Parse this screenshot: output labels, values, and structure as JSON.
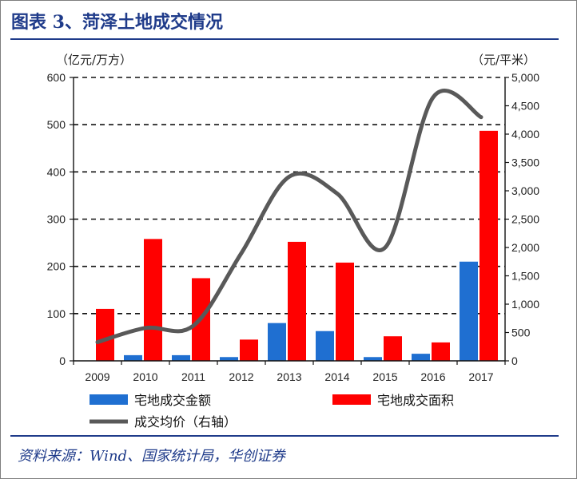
{
  "header": {
    "title": "图表 3、菏泽土地成交情况"
  },
  "footer": {
    "source": "资料来源：Wind、国家统计局，华创证券"
  },
  "chart_data": {
    "type": "bar",
    "categories": [
      "2009",
      "2010",
      "2011",
      "2012",
      "2013",
      "2014",
      "2015",
      "2016",
      "2017"
    ],
    "series": [
      {
        "name": "宅地成交金额",
        "type": "bar",
        "axis": "left",
        "color": "#1f6fd1",
        "values": [
          0,
          12,
          12,
          8,
          80,
          63,
          8,
          15,
          210
        ]
      },
      {
        "name": "宅地成交面积",
        "type": "bar",
        "axis": "left",
        "color": "#ff0000",
        "values": [
          110,
          258,
          175,
          45,
          252,
          208,
          52,
          39,
          487
        ]
      },
      {
        "name": "成交均价（右轴）",
        "type": "line",
        "axis": "right",
        "color": "#595959",
        "values": [
          330,
          580,
          620,
          1900,
          3250,
          2950,
          2000,
          4650,
          4300
        ]
      }
    ],
    "left_axis": {
      "unit": "（亿元/万方）",
      "ylim": [
        0,
        600
      ],
      "ticks": [
        0,
        100,
        200,
        300,
        400,
        500,
        600
      ],
      "tick_labels": [
        "0",
        "100",
        "200",
        "300",
        "400",
        "500",
        "600"
      ]
    },
    "right_axis": {
      "unit": "（元/平米）",
      "ylim": [
        0,
        5000
      ],
      "ticks": [
        0,
        500,
        1000,
        1500,
        2000,
        2500,
        3000,
        3500,
        4000,
        4500,
        5000
      ],
      "tick_labels": [
        "0",
        "500",
        "1,000",
        "1,500",
        "2,000",
        "2,500",
        "3,000",
        "3,500",
        "4,000",
        "4,500",
        "5,000"
      ]
    },
    "gridlines": "dashed horizontal",
    "legend_position": "bottom"
  }
}
